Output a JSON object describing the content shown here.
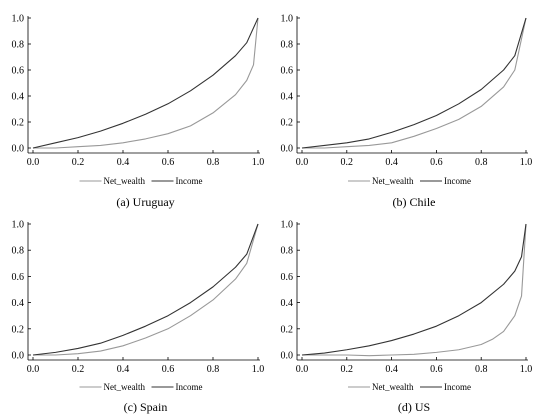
{
  "chart_data": [
    {
      "type": "line",
      "caption": "(a) Uruguay",
      "xlim": [
        0,
        1
      ],
      "ylim": [
        0,
        1
      ],
      "xticks": [
        "0.0",
        "0.2",
        "0.4",
        "0.6",
        "0.8",
        "1.0"
      ],
      "yticks": [
        "0.0",
        "0.2",
        "0.4",
        "0.6",
        "0.8",
        "1.0"
      ],
      "legend_position": "bottom",
      "series": [
        {
          "name": "Net_wealth",
          "color": "#999999",
          "x": [
            0,
            0.1,
            0.2,
            0.3,
            0.4,
            0.5,
            0.6,
            0.7,
            0.8,
            0.9,
            0.95,
            0.98,
            1.0
          ],
          "y": [
            0,
            0,
            0.01,
            0.02,
            0.04,
            0.07,
            0.11,
            0.17,
            0.27,
            0.41,
            0.52,
            0.64,
            1.0
          ]
        },
        {
          "name": "Income",
          "color": "#333333",
          "x": [
            0,
            0.1,
            0.2,
            0.3,
            0.4,
            0.5,
            0.6,
            0.7,
            0.8,
            0.9,
            0.95,
            1.0
          ],
          "y": [
            0,
            0.04,
            0.08,
            0.13,
            0.19,
            0.26,
            0.34,
            0.44,
            0.56,
            0.71,
            0.81,
            1.0
          ]
        }
      ]
    },
    {
      "type": "line",
      "caption": "(b) Chile",
      "xlim": [
        0,
        1
      ],
      "ylim": [
        0,
        1
      ],
      "xticks": [
        "0.0",
        "0.2",
        "0.4",
        "0.6",
        "0.8",
        "1.0"
      ],
      "yticks": [
        "0.0",
        "0.2",
        "0.4",
        "0.6",
        "0.8",
        "1.0"
      ],
      "legend_position": "bottom",
      "series": [
        {
          "name": "Net_wealth",
          "color": "#999999",
          "x": [
            0,
            0.1,
            0.2,
            0.3,
            0.4,
            0.5,
            0.6,
            0.7,
            0.8,
            0.9,
            0.95,
            1.0
          ],
          "y": [
            0,
            0,
            0.01,
            0.02,
            0.04,
            0.09,
            0.15,
            0.22,
            0.32,
            0.47,
            0.6,
            1.0
          ]
        },
        {
          "name": "Income",
          "color": "#333333",
          "x": [
            0,
            0.1,
            0.2,
            0.3,
            0.4,
            0.5,
            0.6,
            0.7,
            0.8,
            0.9,
            0.95,
            1.0
          ],
          "y": [
            0,
            0.02,
            0.04,
            0.07,
            0.12,
            0.18,
            0.25,
            0.34,
            0.45,
            0.6,
            0.71,
            1.0
          ]
        }
      ]
    },
    {
      "type": "line",
      "caption": "(c) Spain",
      "xlim": [
        0,
        1
      ],
      "ylim": [
        0,
        1
      ],
      "xticks": [
        "0.0",
        "0.2",
        "0.4",
        "0.6",
        "0.8",
        "1.0"
      ],
      "yticks": [
        "0.0",
        "0.2",
        "0.4",
        "0.6",
        "0.8",
        "1.0"
      ],
      "legend_position": "bottom",
      "series": [
        {
          "name": "Net_wealth",
          "color": "#999999",
          "x": [
            0,
            0.1,
            0.2,
            0.3,
            0.4,
            0.5,
            0.6,
            0.7,
            0.8,
            0.9,
            0.95,
            1.0
          ],
          "y": [
            0,
            0,
            0.01,
            0.03,
            0.07,
            0.13,
            0.2,
            0.3,
            0.42,
            0.58,
            0.7,
            1.0
          ]
        },
        {
          "name": "Income",
          "color": "#333333",
          "x": [
            0,
            0.1,
            0.2,
            0.3,
            0.4,
            0.5,
            0.6,
            0.7,
            0.8,
            0.9,
            0.95,
            1.0
          ],
          "y": [
            0,
            0.02,
            0.05,
            0.09,
            0.15,
            0.22,
            0.3,
            0.4,
            0.52,
            0.67,
            0.77,
            1.0
          ]
        }
      ]
    },
    {
      "type": "line",
      "caption": "(d) US",
      "xlim": [
        0,
        1
      ],
      "ylim": [
        0,
        1
      ],
      "xticks": [
        "0.0",
        "0.2",
        "0.4",
        "0.6",
        "0.8",
        "1.0"
      ],
      "yticks": [
        "0.0",
        "0.2",
        "0.4",
        "0.6",
        "0.8",
        "1.0"
      ],
      "legend_position": "bottom",
      "series": [
        {
          "name": "Net_wealth",
          "color": "#999999",
          "x": [
            0,
            0.1,
            0.2,
            0.3,
            0.4,
            0.5,
            0.6,
            0.7,
            0.8,
            0.85,
            0.9,
            0.95,
            0.98,
            1.0
          ],
          "y": [
            0,
            0,
            0,
            -0.005,
            0,
            0.005,
            0.02,
            0.04,
            0.08,
            0.12,
            0.18,
            0.3,
            0.45,
            1.0
          ]
        },
        {
          "name": "Income",
          "color": "#333333",
          "x": [
            0,
            0.1,
            0.2,
            0.3,
            0.4,
            0.5,
            0.6,
            0.7,
            0.8,
            0.9,
            0.95,
            0.98,
            1.0
          ],
          "y": [
            0,
            0.015,
            0.04,
            0.07,
            0.11,
            0.16,
            0.22,
            0.3,
            0.4,
            0.54,
            0.64,
            0.75,
            1.0
          ]
        }
      ]
    }
  ]
}
